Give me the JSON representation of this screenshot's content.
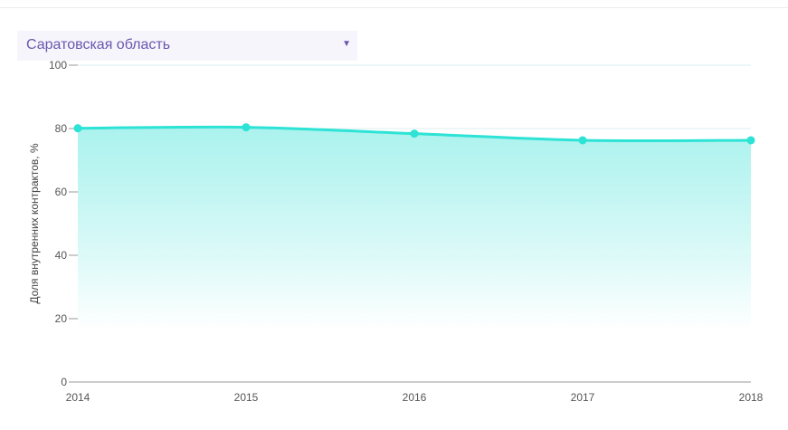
{
  "region_select": {
    "selected": "Саратовская область",
    "caret_icon": "triangle-down-icon"
  },
  "chart_data": {
    "type": "area",
    "ylabel": "Доля внутренних контрактов, %",
    "x": [
      "2014",
      "2015",
      "2016",
      "2017",
      "2018"
    ],
    "series": [
      {
        "values": [
          80.1,
          80.4,
          78.4,
          76.3,
          76.3
        ]
      }
    ],
    "ylim": [
      0,
      100
    ],
    "yticks": [
      0,
      20,
      40,
      60,
      80,
      100
    ],
    "grid": true,
    "colors": {
      "line": "#2de3d5",
      "fill_top": "#9cf0eb",
      "fill_bottom": "#ffffff",
      "grid": "#dceff0",
      "axis": "#999999"
    }
  }
}
